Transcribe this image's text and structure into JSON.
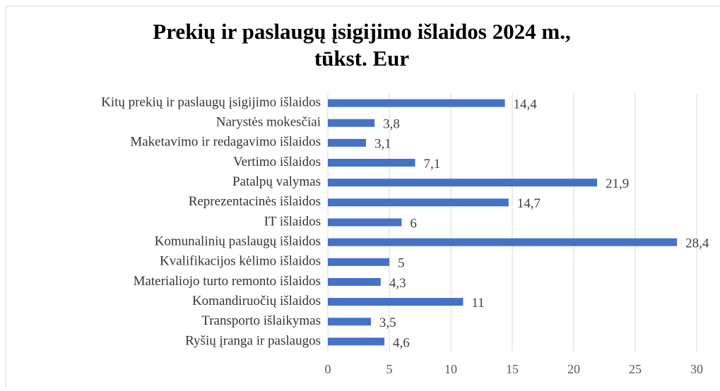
{
  "chart_data": {
    "type": "bar",
    "orientation": "horizontal",
    "title": [
      "Prekių ir paslaugų įsigijimo išlaidos 2024 m.,",
      "tūkst. Eur"
    ],
    "categories": [
      "Kitų prekių ir paslaugų įsigijimo išlaidos",
      "Narystės mokesčiai",
      "Maketavimo ir redagavimo išlaidos",
      "Vertimo išlaidos",
      "Patalpų valymas",
      "Reprezentacinės išlaidos",
      "IT išlaidos",
      "Komunalinių paslaugų išlaidos",
      "Kvalifikacijos kėlimo išlaidos",
      "Materialiojo turto remonto išlaidos",
      "Komandiruočių išlaidos",
      "Transporto išlaikymas",
      "Ryšių įranga ir paslaugos"
    ],
    "values": [
      14.4,
      3.8,
      3.1,
      7.1,
      21.9,
      14.7,
      6,
      28.4,
      5,
      4.3,
      11,
      3.5,
      4.6
    ],
    "value_labels": [
      "14,4",
      "3,8",
      "3,1",
      "7,1",
      "21,9",
      "14,7",
      "6",
      "28,4",
      "5",
      "4,3",
      "11",
      "3,5",
      "4,6"
    ],
    "color": "#4472c4",
    "xlim": [
      0,
      30
    ],
    "xticks": [
      0,
      5,
      10,
      15,
      20,
      25,
      30
    ],
    "grid": true
  }
}
